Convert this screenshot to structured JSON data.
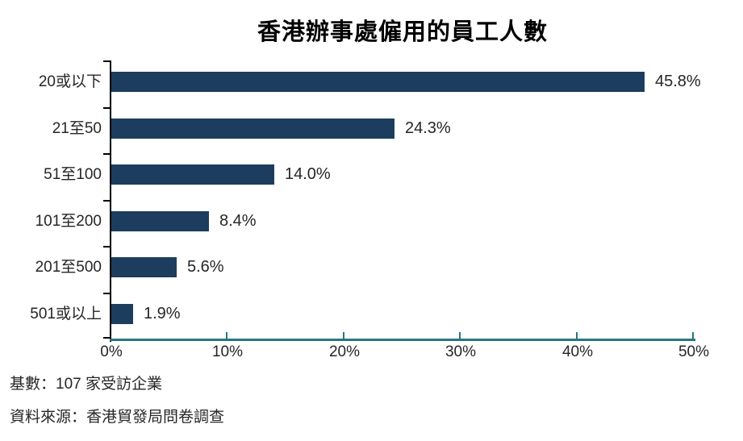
{
  "chart_data": {
    "type": "bar",
    "orientation": "horizontal",
    "title": "香港辦事處僱用的員工人數",
    "categories": [
      "20或以下",
      "21至50",
      "51至100",
      "101至200",
      "201至500",
      "501或以上"
    ],
    "values": [
      45.8,
      24.3,
      14.0,
      8.4,
      5.6,
      1.9
    ],
    "value_labels": [
      "45.8%",
      "24.3%",
      "14.0%",
      "8.4%",
      "5.6%",
      "1.9%"
    ],
    "xlabel": "",
    "ylabel": "",
    "xlim": [
      0,
      50
    ],
    "x_ticks": [
      0,
      10,
      20,
      30,
      40,
      50
    ],
    "x_tick_labels": [
      "0%",
      "10%",
      "20%",
      "30%",
      "40%",
      "50%"
    ],
    "grid": false,
    "legend": false,
    "bar_color": "#1C3D5E",
    "x_axis_color": "#26767F",
    "y_axis_color": "#000000",
    "title_color": "#000000",
    "text_color": "#262626"
  },
  "footer": {
    "base_note": "基數：107 家受訪企業",
    "source_note": "資料來源：香港貿發局問卷調查"
  }
}
